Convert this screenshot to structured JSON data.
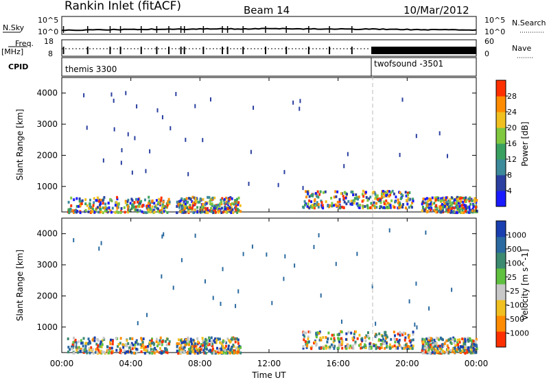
{
  "header": {
    "station": "Rankin Inlet (fitACF)",
    "beam": "Beam 14",
    "date": "10/Mar/2012"
  },
  "strip_labels": {
    "nsky": "N.Sky",
    "nsky_ticks": [
      "10^5",
      "10^0"
    ],
    "nsearch": "N.Search",
    "nsearch_ticks": [
      "10^5",
      "10^0"
    ],
    "freq": "Freq.",
    "freq_unit": "[MHz]",
    "freq_ticks": [
      "18",
      "8"
    ],
    "nave": "Nave",
    "nave_ticks": [
      "60",
      "0"
    ],
    "cpid": "CPID",
    "cpid_modes": [
      "themis 3300",
      "twofsound -3501"
    ]
  },
  "chart_data": [
    {
      "type": "heatmap",
      "title": "",
      "xlabel": "Time UT",
      "ylabel": "Slant Range [km]",
      "colorbar_label": "Power [dB]",
      "x_ticks": [
        "00:00",
        "04:00",
        "08:00",
        "12:00",
        "16:00",
        "20:00",
        "00:00"
      ],
      "x_range_hours": [
        0,
        24
      ],
      "y_ticks": [
        1000,
        2000,
        3000,
        4000
      ],
      "ylim": [
        180,
        4500
      ],
      "colorbar_ticks": [
        "4",
        "8",
        "12",
        "16",
        "20",
        "24",
        "28"
      ],
      "colorbar_range": [
        0,
        32
      ],
      "colors": [
        "#1a1aff",
        "#2a3fa0",
        "#3c8a9a",
        "#3aa060",
        "#7fc840",
        "#f0c020",
        "#ff8c00",
        "#ff3000"
      ],
      "mode_change_hour": 18.0,
      "scatter_clusters": [
        {
          "t0": 0.3,
          "t1": 6.2,
          "r0": 200,
          "r1": 700,
          "value": 22
        },
        {
          "t0": 6.6,
          "t1": 10.3,
          "r0": 200,
          "r1": 700,
          "value": 18
        },
        {
          "t0": 13.9,
          "t1": 20.3,
          "r0": 350,
          "r1": 900,
          "value": 12
        },
        {
          "t0": 20.8,
          "t1": 24,
          "r0": 200,
          "r1": 700,
          "value": 8
        }
      ]
    },
    {
      "type": "heatmap",
      "title": "",
      "xlabel": "Time UT",
      "ylabel": "Slant Range [km]",
      "colorbar_label": "Velocity [m s^-1]",
      "x_ticks": [
        "00:00",
        "04:00",
        "08:00",
        "12:00",
        "16:00",
        "20:00",
        "00:00"
      ],
      "x_range_hours": [
        0,
        24
      ],
      "y_ticks": [
        1000,
        2000,
        3000,
        4000
      ],
      "ylim": [
        180,
        4500
      ],
      "colorbar_ticks": [
        "1000",
        "500",
        "100",
        "25",
        "-25",
        "-100",
        "-500",
        "-1000"
      ],
      "colors": [
        "#1a3fb0",
        "#2a6aa0",
        "#3c8a70",
        "#60c040",
        "#c8c8c8",
        "#f0c020",
        "#ff8c00",
        "#ff3000"
      ],
      "mode_change_hour": 18.0,
      "scatter_clusters": [
        {
          "t0": 0.3,
          "t1": 6.2,
          "r0": 200,
          "r1": 700,
          "value": 0
        },
        {
          "t0": 6.6,
          "t1": 10.3,
          "r0": 200,
          "r1": 700,
          "value": -40
        },
        {
          "t0": 13.9,
          "t1": 20.3,
          "r0": 350,
          "r1": 900,
          "value": 150
        },
        {
          "t0": 20.8,
          "t1": 24,
          "r0": 200,
          "r1": 700,
          "value": 20
        }
      ]
    }
  ]
}
